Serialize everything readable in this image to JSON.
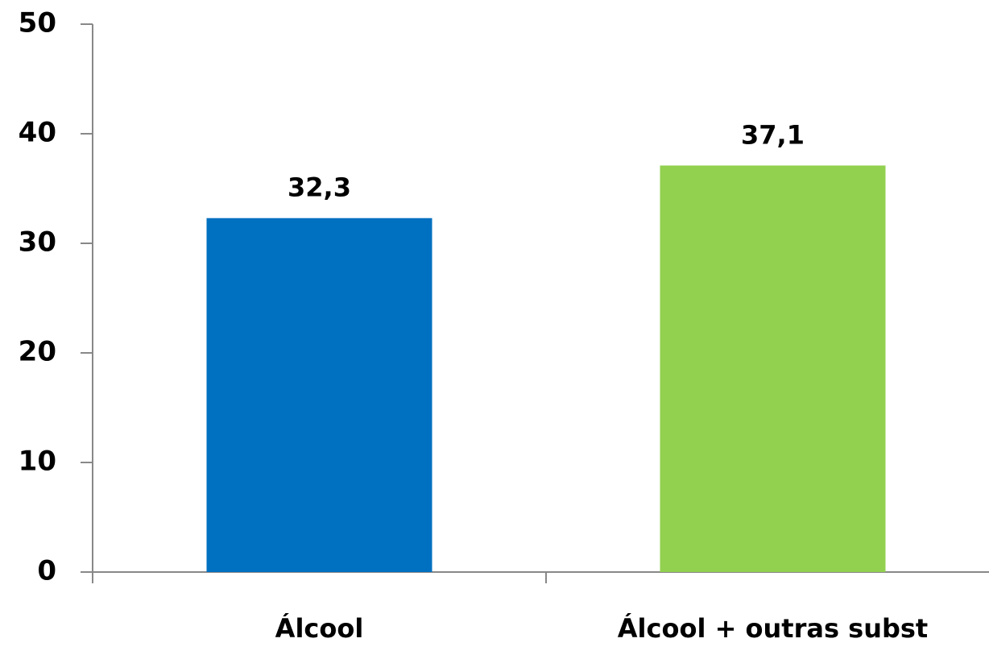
{
  "chart_data": {
    "type": "bar",
    "categories": [
      "Álcool",
      "Álcool + outras subst"
    ],
    "values": [
      32.3,
      37.1
    ],
    "value_labels": [
      "32,3",
      "37,1"
    ],
    "colors": [
      "#0070c0",
      "#92d050"
    ],
    "ylim": [
      0,
      50
    ],
    "yticks": [
      0,
      10,
      20,
      30,
      40,
      50
    ]
  }
}
